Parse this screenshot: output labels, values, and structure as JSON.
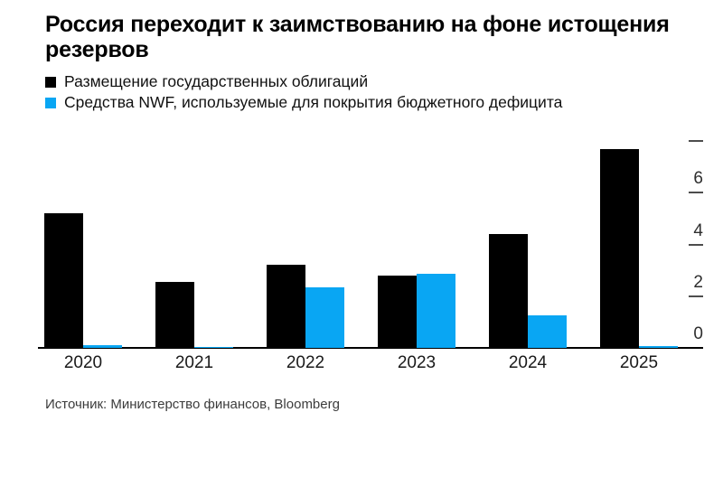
{
  "title": {
    "line1": "Россия переходит к заимствованию на фоне истощения",
    "line2": "резервов",
    "full": "Россия переходит к заимствованию на фоне истощения резервов"
  },
  "source_note": "Источник: Министерство финансов, Bloomberg",
  "colors": {
    "bonds_series": "#000000",
    "nwf_series": "#09A6F3",
    "axis_line": "#000000",
    "tick_dash": "#4d4d4d",
    "text_primary": "#000000",
    "text_secondary": "#3c3c3c",
    "background": "#ffffff"
  },
  "chart_data": {
    "type": "bar",
    "categories": [
      "2020",
      "2021",
      "2022",
      "2023",
      "2024",
      "2025"
    ],
    "series": [
      {
        "name": "Размещение государственных облигаций",
        "color": "#000000",
        "values": [
          5.2,
          2.55,
          3.2,
          2.8,
          4.4,
          7.7
        ]
      },
      {
        "name": "Средства NWF, используемые для покрытия бюджетного дефицита",
        "color": "#09A6F3",
        "values": [
          0.1,
          0.05,
          2.35,
          2.85,
          1.25,
          0.07
        ]
      }
    ],
    "title": "Россия переходит к заимствованию на фоне истощения резервов",
    "xlabel": "",
    "ylabel": "",
    "ylim": [
      0,
      8
    ],
    "yticks_labeled": [
      0,
      2,
      4,
      6
    ],
    "yticks_unlabeled": [
      8
    ],
    "axis_side": "right",
    "grid": false,
    "legend_position": "top-left",
    "source": "Источник: Министерство финансов, Bloomberg"
  }
}
